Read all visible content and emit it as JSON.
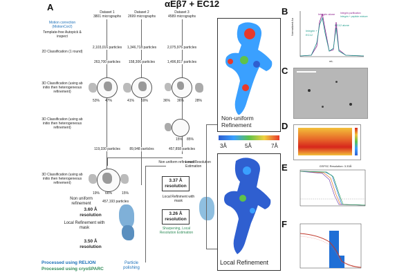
{
  "figure": {
    "title": "αEβ7 + EC12",
    "panel_labels": [
      "A",
      "B",
      "C",
      "D",
      "E",
      "F"
    ]
  },
  "workflow": {
    "datasets": [
      {
        "name": "Dataset 1",
        "micrographs": "3801 micrographs",
        "particles_pick": "2,103,016 particles",
        "particles_2d": "263,700 particles",
        "pct_a": "53%",
        "pct_b": "47%",
        "final": "119,330 particles"
      },
      {
        "name": "Dataset 2",
        "micrographs": "2699 micrographs",
        "particles_pick": "1,346,718 particles",
        "particles_2d": "158,306 particles",
        "pct_a": "41%",
        "pct_b": "59%",
        "final": "89,948 particles"
      },
      {
        "name": "Dataset 3",
        "micrographs": "4589 micrographs",
        "particles_pick": "2,075,976 particles",
        "particles_2d": "1,496,817 particles",
        "pct_a": "36%",
        "pct_b": "36%",
        "pct_c": "28%",
        "pct_d": "15%",
        "pct_e": "85%",
        "final": "457,858 particles"
      }
    ],
    "steps": {
      "motion": "Motion correction (MotionCor2)",
      "picking": "Template-free Autopick & inspect",
      "class2d": "2D Classification (1 round)",
      "class3d": "3D Classification (using ab initio then heterogeneous refinement)",
      "class3d_b": "3D Classification (using ab initio then heterogeneous refinement)",
      "class3d_merged": "3D Classification (using ab initio then heterogeneous refinement)",
      "merged_pcts": [
        "19%",
        "66%",
        "15%"
      ],
      "nonuniform": "Non uniform refinement",
      "merged_particles": "457,193 particles",
      "res_1": "3.60 Å resolution",
      "local_ref_mask": "Local Refinement with mask",
      "res_2": "3.50 Å resolution",
      "particle_polishing": "Particle polishing",
      "local_res_est": "Local Resolution Estimation",
      "nonuniform_b": "Non uniform refinement",
      "res_3": "3.37 Å resolution",
      "local_ref_mask_b": "Local Refinment with mask",
      "res_4": "3.26 Å resolution",
      "sharpening": "Sharpening, Local Resolution Estimation"
    },
    "legend": {
      "relion": "Processed using RELION",
      "cryosparc": "Processed using cryoSPARC"
    }
  },
  "maps": {
    "top_label": "Non-uniform Refinement",
    "bottom_label": "Local Refinement",
    "colorbar": {
      "min": "3Å",
      "mid": "5Å",
      "max": "7Å"
    }
  },
  "panel_b": {
    "legend": [
      "Integrin purification",
      "Integrin + peptide mixture"
    ],
    "peaks": [
      "Integrin alone",
      "Integrin + EC12",
      "EC12 alone"
    ],
    "xlabel": "mL",
    "ylabel": "Normalized Au",
    "xticks": [
      "0",
      "5",
      "10",
      "15",
      "20",
      "25"
    ]
  },
  "panel_e": {
    "title": "GSFSC Resolution: 3.33Å"
  },
  "colors": {
    "accent_blue": "#1a6fb8",
    "accent_green": "#2e8b57",
    "map_red": "#e8392b",
    "map_green": "#5fc24a",
    "map_blue": "#2f5fd0"
  }
}
